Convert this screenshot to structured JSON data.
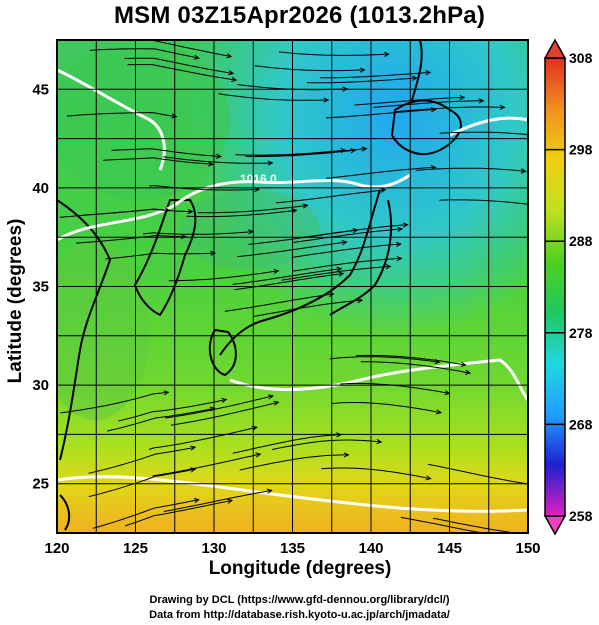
{
  "title": "MSM 03Z15Apr2026 (1013.2hPa)",
  "x_axis": {
    "label": "Longitude (degrees)",
    "range": [
      120,
      150
    ],
    "ticks": [
      "120",
      "125",
      "130",
      "135",
      "140",
      "145",
      "150"
    ]
  },
  "y_axis": {
    "label": "Latitude (degrees)",
    "range": [
      22.5,
      47.5
    ],
    "ticks": [
      "25",
      "30",
      "35",
      "40",
      "45"
    ]
  },
  "colorbar": {
    "range": [
      258,
      308
    ],
    "ticks": [
      "258",
      "268",
      "278",
      "288",
      "298",
      "308"
    ],
    "colors": [
      "#e020c0",
      "#2020d0",
      "#20a0ff",
      "#20d8e0",
      "#20c860",
      "#50d020",
      "#c0e020",
      "#f0d010",
      "#f09020",
      "#e03020"
    ]
  },
  "contour": {
    "label": "1016.0"
  },
  "credits": {
    "line1": "Drawing by DCL (https://www.gfd-dennou.org/library/dcl/)",
    "line2": "Data from http://database.rish.kyoto-u.ac.jp/arch/jmadata/"
  }
}
